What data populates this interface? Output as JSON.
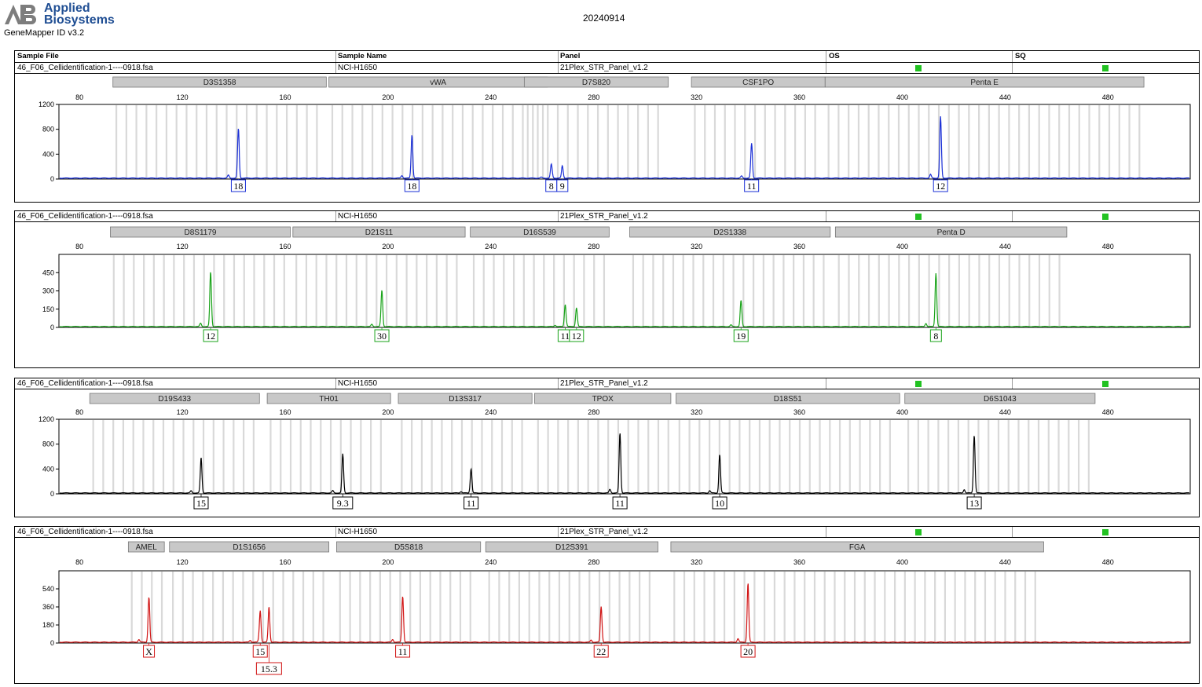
{
  "header": {
    "brand_line1": "Applied",
    "brand_line2": "Biosystems",
    "software": "GeneMapper ID v3.2",
    "date": "20240914",
    "columns": [
      "Sample File",
      "Sample Name",
      "Panel",
      "OS",
      "SQ"
    ]
  },
  "colors": {
    "blue": "#1a2fd6",
    "green": "#19a319",
    "black": "#000000",
    "red": "#d11414",
    "status": "#22c222",
    "marker": "#c8c8c8"
  },
  "size_axis": {
    "range": [
      72,
      512
    ],
    "ticks": [
      80,
      120,
      160,
      200,
      240,
      280,
      320,
      360,
      400,
      440,
      480
    ]
  },
  "chart_data": [
    {
      "type": "line",
      "dye": "blue",
      "sample_file": "46_F06_Cellidentification-1----0918.fsa",
      "sample_name": "NCI-H1650",
      "panel": "21Plex_STR_Panel_v1.2",
      "ylim": [
        0,
        1200
      ],
      "yticks": [
        "1200",
        "800",
        "400",
        "0"
      ],
      "markers": [
        {
          "name": "D3S1358",
          "range": [
            93,
            176
          ]
        },
        {
          "name": "vWA",
          "range": [
            177,
            262
          ]
        },
        {
          "name": "D7S820",
          "range": [
            253,
            309
          ]
        },
        {
          "name": "CSF1PO",
          "range": [
            318,
            370
          ]
        },
        {
          "name": "Penta E",
          "range": [
            370,
            494
          ]
        }
      ],
      "peaks": [
        {
          "size": 141.8,
          "height": 800
        },
        {
          "size": 209.3,
          "height": 700
        },
        {
          "size": 263.5,
          "height": 220
        },
        {
          "size": 267.8,
          "height": 200
        },
        {
          "size": 341.4,
          "height": 560
        },
        {
          "size": 414.9,
          "height": 990
        }
      ],
      "alleles": [
        {
          "label": "18",
          "size": 141.8
        },
        {
          "label": "18",
          "size": 209.3
        },
        {
          "label": "8",
          "size": 263.5
        },
        {
          "label": "9",
          "size": 267.8
        },
        {
          "label": "11",
          "size": 341.4
        },
        {
          "label": "12",
          "size": 414.9
        }
      ]
    },
    {
      "type": "line",
      "dye": "green",
      "sample_file": "46_F06_Cellidentification-1----0918.fsa",
      "sample_name": "NCI-H1650",
      "panel": "21Plex_STR_Panel_v1.2",
      "ylim": [
        0,
        600
      ],
      "yticks": [
        "450",
        "300",
        "150",
        "0"
      ],
      "markers": [
        {
          "name": "D8S1179",
          "range": [
            92,
            162
          ]
        },
        {
          "name": "D21S11",
          "range": [
            163,
            230
          ]
        },
        {
          "name": "D16S539",
          "range": [
            232,
            286
          ]
        },
        {
          "name": "D2S1338",
          "range": [
            294,
            372
          ]
        },
        {
          "name": "Penta D",
          "range": [
            374,
            464
          ]
        }
      ],
      "peaks": [
        {
          "size": 131.0,
          "height": 450
        },
        {
          "size": 197.6,
          "height": 300
        },
        {
          "size": 268.9,
          "height": 180
        },
        {
          "size": 273.3,
          "height": 155
        },
        {
          "size": 337.3,
          "height": 215
        },
        {
          "size": 413.1,
          "height": 440
        }
      ],
      "alleles": [
        {
          "label": "12",
          "size": 131.0
        },
        {
          "label": "30",
          "size": 197.6
        },
        {
          "label": "11",
          "size": 268.9
        },
        {
          "label": "12",
          "size": 273.3
        },
        {
          "label": "19",
          "size": 337.3
        },
        {
          "label": "8",
          "size": 413.1
        }
      ]
    },
    {
      "type": "line",
      "dye": "black",
      "sample_file": "46_F06_Cellidentification-1----0918.fsa",
      "sample_name": "NCI-H1650",
      "panel": "21Plex_STR_Panel_v1.2",
      "ylim": [
        0,
        1200
      ],
      "yticks": [
        "1200",
        "800",
        "400",
        "0"
      ],
      "markers": [
        {
          "name": "D19S433",
          "range": [
            84,
            150
          ]
        },
        {
          "name": "TH01",
          "range": [
            153,
            201
          ]
        },
        {
          "name": "D13S317",
          "range": [
            204,
            256
          ]
        },
        {
          "name": "TPOX",
          "range": [
            257,
            310
          ]
        },
        {
          "name": "D18S51",
          "range": [
            312,
            399
          ]
        },
        {
          "name": "D6S1043",
          "range": [
            401,
            475
          ]
        }
      ],
      "peaks": [
        {
          "size": 127.3,
          "height": 570
        },
        {
          "size": 182.4,
          "height": 630
        },
        {
          "size": 232.3,
          "height": 390
        },
        {
          "size": 290.2,
          "height": 970
        },
        {
          "size": 329.0,
          "height": 620
        },
        {
          "size": 428.0,
          "height": 930
        }
      ],
      "alleles": [
        {
          "label": "15",
          "size": 127.3
        },
        {
          "label": "9.3",
          "size": 182.4
        },
        {
          "label": "11",
          "size": 232.3
        },
        {
          "label": "11",
          "size": 290.2
        },
        {
          "label": "10",
          "size": 329.0
        },
        {
          "label": "13",
          "size": 428.0
        }
      ]
    },
    {
      "type": "line",
      "dye": "red",
      "sample_file": "46_F06_Cellidentification-1----0918.fsa",
      "sample_name": "NCI-H1650",
      "panel": "21Plex_STR_Panel_v1.2",
      "ylim": [
        0,
        720
      ],
      "yticks": [
        "540",
        "360",
        "180",
        "0"
      ],
      "markers": [
        {
          "name": "AMEL",
          "range": [
            99,
            113
          ]
        },
        {
          "name": "D1S1656",
          "range": [
            115,
            177
          ]
        },
        {
          "name": "D5S818",
          "range": [
            180,
            236
          ]
        },
        {
          "name": "D12S391",
          "range": [
            238,
            305
          ]
        },
        {
          "name": "FGA",
          "range": [
            310,
            455
          ]
        }
      ],
      "peaks": [
        {
          "size": 107.0,
          "height": 450
        },
        {
          "size": 150.3,
          "height": 310
        },
        {
          "size": 153.7,
          "height": 355
        },
        {
          "size": 205.7,
          "height": 460
        },
        {
          "size": 282.9,
          "height": 355
        },
        {
          "size": 340.0,
          "height": 590
        }
      ],
      "alleles": [
        {
          "label": "X",
          "size": 107.0
        },
        {
          "label": "15",
          "size": 150.3
        },
        {
          "label": "15.3",
          "size": 153.7
        },
        {
          "label": "11",
          "size": 205.7
        },
        {
          "label": "22",
          "size": 282.9
        },
        {
          "label": "20",
          "size": 340.0
        }
      ]
    }
  ]
}
